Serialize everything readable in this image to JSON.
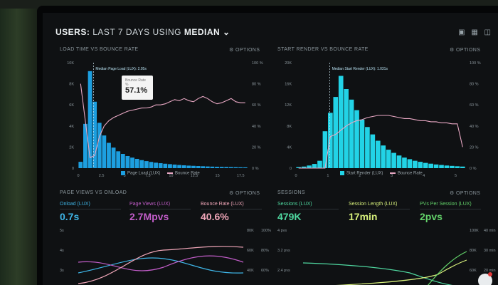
{
  "header": {
    "prefix": "USERS:",
    "middle": "LAST 7 DAYS",
    "using": "USING",
    "metric": "MEDIAN",
    "chevron": "chevron-down-icon"
  },
  "toolbar_icons": [
    "monitor-icon",
    "image-icon",
    "trash-icon"
  ],
  "panels": {
    "load_time": {
      "title": "LOAD TIME VS BOUNCE RATE",
      "options": "OPTIONS",
      "median_label": "Median Page Load (LUX): 2.05s",
      "tooltip_label": "Bounce Rate",
      "tooltip_sub": "%",
      "tooltip_value": "57.1%",
      "legend_bar": "Page Load (LUX)",
      "legend_line": "Bounce Rate",
      "y_left": [
        "10K",
        "8K",
        "6K",
        "4K",
        "2K",
        "0"
      ],
      "y_right": [
        "100 %",
        "80 %",
        "60 %",
        "40 %",
        "20 %",
        "0 %"
      ],
      "x_ticks": [
        "0",
        "2.5",
        "5",
        "7.5",
        "10",
        "12.5",
        "15",
        "17.5"
      ]
    },
    "start_render": {
      "title": "START RENDER VS BOUNCE RATE",
      "options": "OPTIONS",
      "median_label": "Median Start Render (LUX): 1.031s",
      "legend_bar": "Start Render (LUX)",
      "legend_line": "Bounce Rate",
      "y_left": [
        "20K",
        "16K",
        "12K",
        "8K",
        "4K",
        "0"
      ],
      "y_right": [
        "100 %",
        "80 %",
        "60 %",
        "40 %",
        "20 %",
        "0 %"
      ],
      "x_ticks": [
        "0",
        "1",
        "2",
        "3",
        "4",
        "5"
      ]
    },
    "page_views": {
      "title": "PAGE VIEWS VS ONLOAD",
      "options": "OPTIONS",
      "metrics": [
        {
          "label": "Onload (LUX)",
          "value": "0.7s",
          "color": "#3fb6e8"
        },
        {
          "label": "Page Views (LUX)",
          "value": "2.7Mpvs",
          "color": "#c25dc9"
        },
        {
          "label": "Bounce Rate (LUX)",
          "value": "40.6%",
          "color": "#f0a6b8"
        }
      ],
      "y_left": [
        "5s",
        "4s",
        "3s"
      ],
      "y_right_a": [
        "80K",
        "60K",
        "40K"
      ],
      "y_right_b": [
        "100%",
        "80%",
        "60%"
      ]
    },
    "sessions": {
      "title": "SESSIONS",
      "options": "OPTIONS",
      "metrics": [
        {
          "label": "Sessions (LUX)",
          "value": "479K",
          "color": "#4fd8a0"
        },
        {
          "label": "Session Length (LUX)",
          "value": "17min",
          "color": "#d6ef7b"
        },
        {
          "label": "PVs Per Session (LUX)",
          "value": "2pvs",
          "color": "#63d26a"
        }
      ],
      "y_left": [
        "4 pvs",
        "3.2 pvs",
        "2.4 pvs"
      ],
      "y_right_a": [
        "100K",
        "80K",
        "60K"
      ],
      "y_right_b": [
        "40 min",
        "30 min",
        "20 min"
      ]
    }
  },
  "colors": {
    "bar_blue": "#1d9fe0",
    "bar_cyan": "#22d3e6",
    "line_pink": "#e9a8c4"
  },
  "chart_data": [
    {
      "type": "bar",
      "title": "LOAD TIME VS BOUNCE RATE",
      "series": [
        {
          "name": "Page Load (LUX)",
          "values": [
            600,
            4200,
            9200,
            6300,
            4300,
            3100,
            2400,
            1950,
            1600,
            1350,
            1150,
            1000,
            880,
            760,
            670,
            590,
            520,
            470,
            420,
            380,
            340,
            300,
            270,
            240,
            220,
            200,
            180,
            160,
            145,
            130,
            120,
            110,
            100,
            90,
            80,
            75
          ]
        },
        {
          "name": "Bounce Rate",
          "values": [
            80,
            45,
            10,
            12,
            30,
            40,
            45,
            48,
            50,
            52,
            54,
            55,
            56,
            57,
            57.1,
            58,
            60,
            60,
            61,
            63,
            65,
            64,
            66,
            64,
            63,
            66,
            68,
            66,
            63,
            61,
            62,
            64,
            66,
            63,
            62,
            62
          ]
        }
      ],
      "ylim": [
        0,
        10000
      ],
      "y2lim": [
        0,
        100
      ],
      "xlim": [
        0,
        18
      ]
    },
    {
      "type": "bar",
      "title": "START RENDER VS BOUNCE RATE",
      "series": [
        {
          "name": "Start Render (LUX)",
          "values": [
            200,
            300,
            500,
            800,
            1400,
            7000,
            10500,
            13500,
            17500,
            15000,
            13000,
            11000,
            9200,
            7800,
            6400,
            5200,
            4300,
            3500,
            2900,
            2400,
            2000,
            1700,
            1400,
            1200,
            1000,
            850,
            700,
            600,
            500,
            430,
            360,
            300
          ]
        },
        {
          "name": "Bounce Rate",
          "values": [
            0,
            0,
            0,
            0,
            0,
            0,
            30,
            32,
            36,
            40,
            43,
            45,
            46,
            48,
            49,
            50,
            50,
            50,
            49,
            48,
            47,
            47,
            46,
            45,
            45,
            44,
            44,
            43,
            43,
            42,
            42,
            20
          ]
        }
      ],
      "ylim": [
        0,
        20000
      ],
      "y2lim": [
        0,
        100
      ],
      "xlim": [
        0,
        5.5
      ]
    }
  ]
}
